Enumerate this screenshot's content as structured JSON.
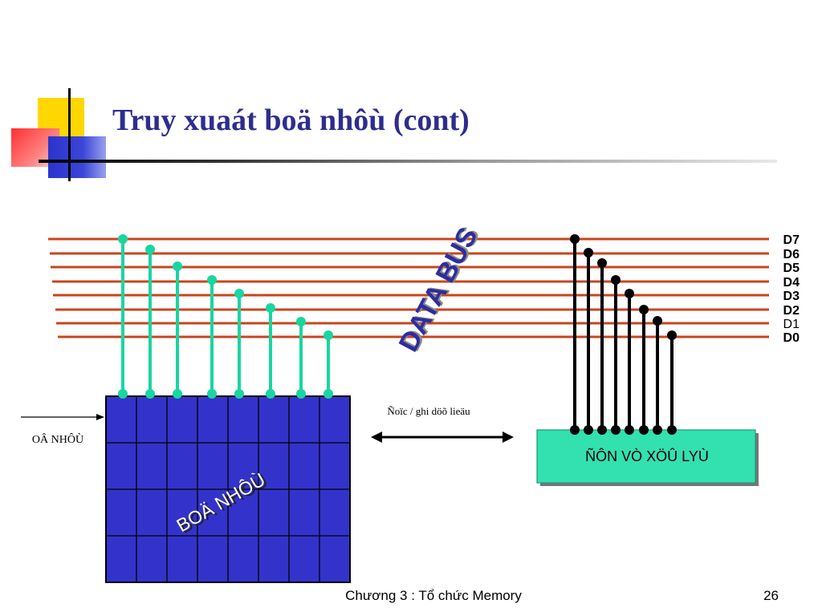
{
  "slide": {
    "title": "Truy xuaát boä nhôù (cont)",
    "footer": "Chương 3 : Tổ chức Memory",
    "page_number": "26"
  },
  "bus": {
    "label": "DATA BUS",
    "lines": [
      "D7",
      "D6",
      "D5",
      "D4",
      "D3",
      "D2",
      "D1",
      "D0"
    ],
    "bold": [
      true,
      true,
      true,
      true,
      true,
      true,
      false,
      true
    ],
    "color": "#c8461c"
  },
  "memory": {
    "label": "BOÄ NHÔÙ",
    "address_label": "OÂ NHÔÙ",
    "fill": "#3333cc",
    "connector_color": "#19d6a0"
  },
  "transfer": {
    "label": "Ñoïc / ghi döõ lieäu"
  },
  "processor": {
    "label": "ÑÔN VÒ XÖÛ LYÙ",
    "fill": "#33e0b0"
  }
}
